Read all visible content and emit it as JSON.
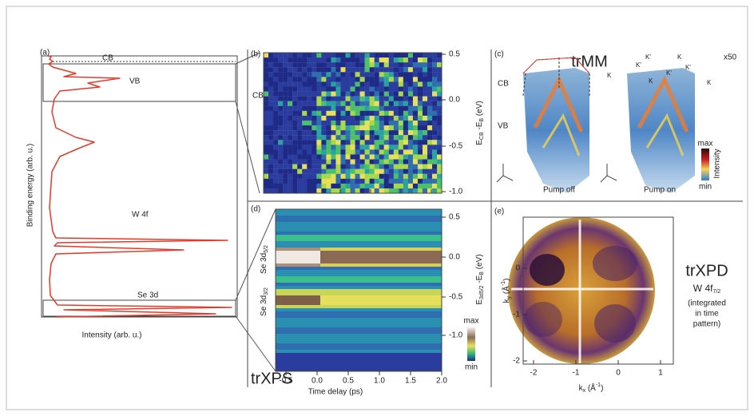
{
  "panels": {
    "a": {
      "label": "(a)",
      "y_axis": "Binding energy (arb. u.)",
      "x_axis": "Intensity (arb. u.)",
      "peaks": [
        "CB",
        "VB",
        "W 4f",
        "Se 3d"
      ]
    },
    "b": {
      "label": "(b)",
      "side": "CB",
      "y_axis": [
        "E",
        {
          "text": "CB",
          "shift": "sub"
        },
        " -E",
        {
          "text": "B",
          "shift": "sub"
        },
        " (eV)"
      ],
      "yticks": [
        "0.5",
        "0.0",
        "-0.5",
        "-1.0"
      ]
    },
    "c": {
      "label": "(c)",
      "title": "trMM",
      "bands": [
        "CB",
        "VB"
      ],
      "images": [
        "Pump off",
        "Pump on"
      ],
      "colorbar": {
        "max": "max",
        "min": "min",
        "label": "Intensity"
      },
      "scale": "x50",
      "k_labels": [
        "K",
        "K'",
        "K",
        "K'",
        "K'",
        "K",
        "K'",
        "K"
      ]
    },
    "d": {
      "label": "(d)",
      "title": "trXPS",
      "levels": [
        [
          "Se 3d",
          {
            "text": "5/2",
            "shift": "sub"
          }
        ],
        [
          "Se 3d",
          {
            "text": "3/2",
            "shift": "sub"
          }
        ]
      ],
      "y_axis": [
        "E",
        {
          "text": "3d5/2",
          "shift": "sub"
        },
        " -E",
        {
          "text": "B",
          "shift": "sub"
        },
        " (eV)"
      ],
      "yticks": [
        "0.5",
        "0.0",
        "-0.5",
        "-1.0"
      ],
      "xticks": [
        "-0.5",
        "0.0",
        "0.5",
        "1.0",
        "1.5",
        "2.0"
      ],
      "x_axis": "Time delay (ps)",
      "colorbar": {
        "max": "max",
        "min": "min"
      }
    },
    "e": {
      "label": "(e)",
      "title": "trXPD",
      "subtitle": [
        "W 4f",
        {
          "text": "7/2",
          "shift": "sub"
        }
      ],
      "note": [
        "(integrated",
        "in time",
        "pattern)"
      ],
      "yticks": [
        "0",
        "-1",
        "-2"
      ],
      "xticks": [
        "-2",
        "-1",
        "0",
        "1"
      ],
      "y_axis": [
        "k",
        {
          "text": "y",
          "shift": "sub"
        },
        " (Å",
        {
          "text": "-1",
          "shift": "sup"
        },
        ")"
      ],
      "x_axis": [
        "k",
        {
          "text": "x",
          "shift": "sub"
        },
        " (Å",
        {
          "text": "-1",
          "shift": "sup"
        },
        ")"
      ]
    }
  }
}
